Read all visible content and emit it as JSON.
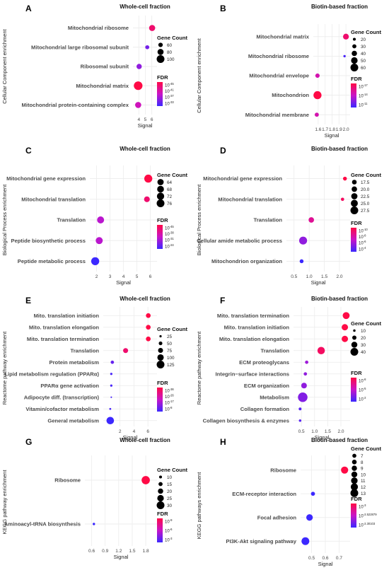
{
  "figure": {
    "title": "Enrichment dot plots"
  },
  "chart_data": [
    {
      "letter": "A",
      "title": "Whole-cell fraction",
      "type": "scatter",
      "ylabel": "Cellular Component enrichment",
      "xlabel": "Signal",
      "categories": [
        "Mitochondrial ribosome",
        "Mitochondrial large ribosomal subunit",
        "Ribosomal subunit",
        "Mitochondrial matrix",
        "Mitochondrial protein-containing complex"
      ],
      "x": [
        6.05,
        5.3,
        4.05,
        3.9,
        3.9
      ],
      "size": [
        80,
        55,
        70,
        110,
        80
      ],
      "color": [
        0.85,
        0.2,
        0.3,
        1.0,
        0.55
      ],
      "xlim": [
        3.1,
        6.8
      ],
      "xticks": [
        4,
        5,
        6
      ],
      "xtick_labels": [
        "4",
        "5",
        "6"
      ],
      "size_legend": {
        "title": "Gene Count",
        "labels": [
          "60",
          "80",
          "100"
        ],
        "sizes": [
          60,
          80,
          100
        ]
      },
      "color_legend": {
        "title": "FDR",
        "ticks": [
          {
            "base": "10",
            "exp": "-45"
          },
          {
            "base": "10",
            "exp": "-41"
          },
          {
            "base": "10",
            "exp": "-37"
          },
          {
            "base": "10",
            "exp": "-33"
          }
        ]
      },
      "grid": true,
      "legend_position": "right"
    },
    {
      "letter": "B",
      "title": "Biotin-based fraction",
      "type": "scatter",
      "ylabel": "Cellular Component enrichment",
      "xlabel": "Signal",
      "categories": [
        "Mitochondrial matrix",
        "Mitochondrial ribosome",
        "Mitochondrial envelope",
        "Mitochondrion",
        "Mitochondrial membrane"
      ],
      "x": [
        2.0,
        1.98,
        1.59,
        1.59,
        1.58
      ],
      "size": [
        44,
        16,
        32,
        62,
        30
      ],
      "color": [
        0.85,
        0.05,
        0.6,
        1.0,
        0.6
      ],
      "xlim": [
        1.53,
        2.06
      ],
      "xticks": [
        1.6,
        1.7,
        1.8,
        1.9,
        2.0
      ],
      "xtick_labels": [
        "1.6",
        "1.7",
        "1.8",
        "1.9",
        "2.0"
      ],
      "size_legend": {
        "title": "Gene Count",
        "labels": [
          "20",
          "30",
          "40",
          "50",
          "60"
        ],
        "sizes": [
          20,
          30,
          40,
          50,
          60
        ]
      },
      "color_legend": {
        "title": "FDR",
        "ticks": [
          {
            "base": "10",
            "exp": "-17"
          },
          {
            "base": "10",
            "exp": "-14"
          },
          {
            "base": "10",
            "exp": "-11"
          }
        ]
      },
      "grid": true,
      "legend_position": "right"
    },
    {
      "letter": "C",
      "title": "Whole-cell fraction",
      "type": "scatter",
      "ylabel": "Biological Process enrichment",
      "xlabel": "Signal",
      "categories": [
        "Mitochondrial gene expression",
        "Mitochondrial translation",
        "Translation",
        "Peptide biosynthetic process",
        "Peptide metabolic process"
      ],
      "x": [
        5.85,
        5.75,
        2.3,
        2.2,
        1.9
      ],
      "size": [
        78,
        60,
        70,
        70,
        78
      ],
      "color": [
        1.0,
        0.85,
        0.45,
        0.45,
        0.0
      ],
      "xlim": [
        1.5,
        6.5
      ],
      "xticks": [
        2,
        3,
        4,
        5,
        6
      ],
      "xtick_labels": [
        "2",
        "3",
        "4",
        "5",
        "6"
      ],
      "size_legend": {
        "title": "Gene Count",
        "labels": [
          "64",
          "68",
          "72",
          "76"
        ],
        "sizes": [
          64,
          68,
          72,
          76
        ]
      },
      "color_legend": {
        "title": "FDR",
        "ticks": [
          {
            "base": "10",
            "exp": "-45"
          },
          {
            "base": "10",
            "exp": "-38"
          },
          {
            "base": "10",
            "exp": "-31"
          },
          {
            "base": "10",
            "exp": "-24"
          }
        ]
      },
      "grid": true,
      "legend_position": "right"
    },
    {
      "letter": "D",
      "title": "Biotin-based fraction",
      "type": "scatter",
      "ylabel": "Biological Process enrichment",
      "xlabel": "Signal",
      "categories": [
        "Mitochondrial gene expression",
        "Mitochondrial translation",
        "Translation",
        "Cellular amide metabolic process",
        "Mitochondrion organization"
      ],
      "x": [
        2.18,
        2.1,
        1.07,
        0.8,
        0.75
      ],
      "size": [
        15,
        13,
        20,
        28,
        15
      ],
      "color": [
        1.0,
        0.9,
        0.7,
        0.3,
        0.0
      ],
      "xlim": [
        0.25,
        2.35
      ],
      "xticks": [
        0.5,
        1.0,
        1.5,
        2.0
      ],
      "xtick_labels": [
        "0.5",
        "1.0",
        "1.5",
        "2.0"
      ],
      "size_legend": {
        "title": "Gene Count",
        "labels": [
          "17.5",
          "20.0",
          "22.5",
          "25.0",
          "27.5"
        ],
        "sizes": [
          17.5,
          20,
          22.5,
          25,
          27.5
        ]
      },
      "color_legend": {
        "title": "FDR",
        "ticks": [
          {
            "base": "10",
            "exp": "-10"
          },
          {
            "base": "10",
            "exp": "-8"
          },
          {
            "base": "10",
            "exp": "-6"
          },
          {
            "base": "10",
            "exp": "-4"
          }
        ]
      },
      "grid": true,
      "legend_position": "right"
    },
    {
      "letter": "E",
      "title": "Whole-cell fraction",
      "type": "scatter",
      "ylabel": "Reactome pathway enrichment",
      "xlabel": "Signal",
      "categories": [
        "Mito. translation initiation",
        "Mito. translation elongation",
        "Mito. translation termination",
        "Translation",
        "Protein metabolism",
        "Lipid metabolism regulation (PPARα)",
        "PPARα gene activation",
        "Adipocyte diff. (transcription)",
        "Vitamin/cofactor metabolism",
        "General metabolism"
      ],
      "x": [
        6.05,
        6.05,
        6.05,
        2.8,
        0.9,
        0.75,
        0.75,
        0.75,
        0.6,
        0.6
      ],
      "size": [
        70,
        70,
        70,
        75,
        45,
        25,
        25,
        12,
        20,
        120
      ],
      "color": [
        1.0,
        1.0,
        1.0,
        0.85,
        0.15,
        0.05,
        0.05,
        0.05,
        0.05,
        0.0
      ],
      "xlim": [
        -0.4,
        7.3
      ],
      "xticks": [
        2,
        4,
        6
      ],
      "xtick_labels": [
        "2",
        "4",
        "6"
      ],
      "size_legend": {
        "title": "Gene Count",
        "labels": [
          "25",
          "50",
          "75",
          "100",
          "125"
        ],
        "sizes": [
          25,
          50,
          75,
          100,
          125
        ]
      },
      "color_legend": {
        "title": "FDR",
        "ticks": [
          {
            "base": "10",
            "exp": "-36"
          },
          {
            "base": "10",
            "exp": "-26"
          },
          {
            "base": "10",
            "exp": "-17"
          },
          {
            "base": "10",
            "exp": "-8"
          }
        ]
      },
      "grid": true,
      "legend_position": "right"
    },
    {
      "letter": "F",
      "title": "Biotin-based fraction",
      "type": "scatter",
      "ylabel": "Reactome pathway enrichment",
      "xlabel": "Signal",
      "categories": [
        "Mito. translation termination",
        "Mito. translation initiation",
        "Mito. translation elongation",
        "Translation",
        "ECM proteoglycans",
        "Integrin−surface interactions",
        "ECM organization",
        "Metabolism",
        "Collagen formation",
        "Collagen biosynthesis & enzymes"
      ],
      "x": [
        2.2,
        2.15,
        2.15,
        1.25,
        0.7,
        0.65,
        0.6,
        0.55,
        0.45,
        0.45
      ],
      "size": [
        35,
        32,
        32,
        38,
        15,
        15,
        28,
        50,
        12,
        10
      ],
      "color": [
        1.0,
        1.0,
        1.0,
        0.9,
        0.35,
        0.3,
        0.3,
        0.25,
        0.1,
        0.1
      ],
      "xlim": [
        0.2,
        2.35
      ],
      "xticks": [
        0.5,
        1.0,
        1.5,
        2.0
      ],
      "xtick_labels": [
        "0.5",
        "1.0",
        "1.5",
        "2.0"
      ],
      "size_legend": {
        "title": "Gene Count",
        "labels": [
          "10",
          "20",
          "30",
          "40"
        ],
        "sizes": [
          10,
          20,
          30,
          40
        ]
      },
      "color_legend": {
        "title": "FDR",
        "ticks": [
          {
            "base": "10",
            "exp": "-8"
          },
          {
            "base": "10",
            "exp": "-5"
          },
          {
            "base": "10",
            "exp": "-2"
          }
        ]
      },
      "grid": true,
      "legend_position": "right"
    },
    {
      "letter": "G",
      "title": "Whole-cell fraction",
      "type": "scatter",
      "ylabel": "KEGG pathway enrichment",
      "xlabel": "Signal",
      "categories": [
        "Ribosome",
        "Aminoacyl-tRNA biosynthesis"
      ],
      "x": [
        1.8,
        0.65
      ],
      "size": [
        32,
        8
      ],
      "color": [
        1.0,
        0.0
      ],
      "xlim": [
        0.45,
        2.05
      ],
      "xticks": [
        0.6,
        0.9,
        1.2,
        1.5,
        1.8
      ],
      "xtick_labels": [
        "0.6",
        "0.9",
        "1.2",
        "1.5",
        "1.8"
      ],
      "size_legend": {
        "title": "Gene Count",
        "labels": [
          "10",
          "15",
          "20",
          "25",
          "30"
        ],
        "sizes": [
          10,
          15,
          20,
          25,
          30
        ]
      },
      "color_legend": {
        "title": "FDR",
        "ticks": [
          {
            "base": "10",
            "exp": "-9"
          },
          {
            "base": "10",
            "exp": "-6"
          },
          {
            "base": "10",
            "exp": "-3"
          }
        ]
      },
      "grid": true,
      "legend_position": "right"
    },
    {
      "letter": "H",
      "title": "Biotin-based fraction",
      "type": "scatter",
      "ylabel": "KEGG pathways enrichment",
      "xlabel": "Signal",
      "categories": [
        "Ribosome",
        "ECM-receptor interaction",
        "Focal adhesion",
        "PI3K-Akt signaling pathway"
      ],
      "x": [
        0.74,
        0.51,
        0.485,
        0.455
      ],
      "size": [
        12,
        7,
        11,
        13
      ],
      "color": [
        1.0,
        0.0,
        0.0,
        0.0
      ],
      "xlim": [
        0.42,
        0.78
      ],
      "xticks": [
        0.5,
        0.6,
        0.7
      ],
      "xtick_labels": [
        "0.5",
        "0.6",
        "0.7"
      ],
      "size_legend": {
        "title": "Gene Count",
        "labels": [
          "7",
          "8",
          "9",
          "10",
          "11",
          "12",
          "13"
        ],
        "sizes": [
          7,
          8,
          9,
          10,
          11,
          12,
          13
        ]
      },
      "color_legend": {
        "title": "FDR",
        "ticks": [
          {
            "base": "10",
            "exp": "-3"
          },
          {
            "base": "10",
            "exp": "-2.522879"
          },
          {
            "base": "10",
            "exp": "-2.30103"
          }
        ]
      },
      "grid": true,
      "legend_position": "right"
    }
  ]
}
